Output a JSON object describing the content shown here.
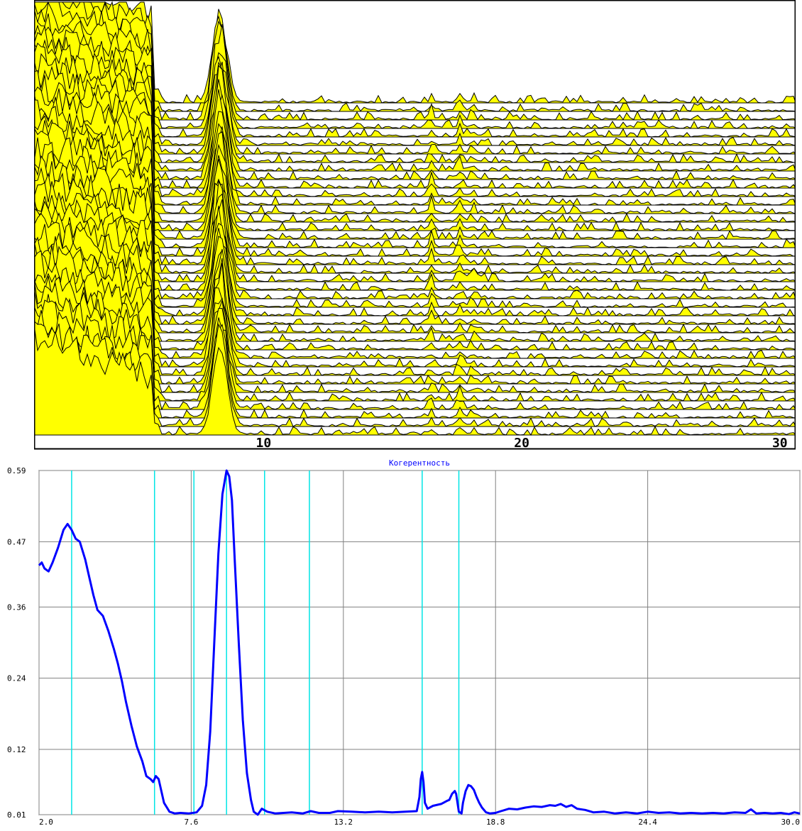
{
  "chart_data": [
    {
      "type": "area",
      "x_ticks": [
        "10",
        "20",
        "30"
      ],
      "x_tick_values": [
        10,
        20,
        30
      ],
      "xlim": [
        1.0,
        30.5
      ],
      "trace_count": 40,
      "peak_positions": [
        8.2,
        16.4,
        17.5,
        18.0,
        21.3
      ],
      "colors": {
        "fill": "#ffff00",
        "stroke": "#000000",
        "background": "#ffffff"
      }
    },
    {
      "type": "line",
      "title": "Когерентность",
      "y_ticks": [
        "0.59",
        "0.47",
        "0.36",
        "0.24",
        "0.12",
        "0.01"
      ],
      "y_tick_values": [
        0.59,
        0.47,
        0.36,
        0.24,
        0.12,
        0.01
      ],
      "x_ticks": [
        "2.0",
        "7.6",
        "13.2",
        "18.8",
        "24.4",
        "30.0"
      ],
      "x_tick_values": [
        2.0,
        7.6,
        13.2,
        18.8,
        24.4,
        30.0
      ],
      "xlim": [
        2.0,
        30.0
      ],
      "ylim": [
        0.01,
        0.59
      ],
      "grid": true,
      "marker_lines": [
        3.2,
        6.25,
        7.7,
        8.9,
        10.3,
        11.95,
        16.1,
        17.45
      ],
      "series": [
        {
          "x": [
            2.0,
            2.1,
            2.2,
            2.35,
            2.5,
            2.7,
            2.9,
            3.05,
            3.2,
            3.35,
            3.5,
            3.7,
            3.85,
            4.0,
            4.15,
            4.35,
            4.55,
            4.75,
            4.9,
            5.05,
            5.2,
            5.4,
            5.6,
            5.8,
            5.95,
            6.1,
            6.2,
            6.3,
            6.4,
            6.5,
            6.6,
            6.8,
            7.0,
            7.2,
            7.5,
            7.8,
            8.0,
            8.15,
            8.3,
            8.45,
            8.6,
            8.75,
            8.9,
            9.0,
            9.1,
            9.2,
            9.35,
            9.5,
            9.65,
            9.8,
            9.9,
            10.05,
            10.2,
            10.4,
            10.7,
            11.0,
            11.3,
            11.7,
            12.0,
            12.3,
            12.7,
            13.0,
            13.5,
            14.0,
            14.5,
            15.0,
            15.5,
            15.9,
            16.0,
            16.05,
            16.1,
            16.15,
            16.2,
            16.3,
            16.5,
            16.8,
            17.0,
            17.1,
            17.2,
            17.3,
            17.35,
            17.4,
            17.45,
            17.55,
            17.6,
            17.7,
            17.8,
            17.9,
            18.0,
            18.1,
            18.2,
            18.3,
            18.45,
            18.6,
            18.8,
            19.0,
            19.3,
            19.6,
            19.9,
            20.2,
            20.5,
            20.8,
            21.0,
            21.2,
            21.4,
            21.6,
            21.8,
            22.1,
            22.4,
            22.8,
            23.2,
            23.6,
            24.0,
            24.4,
            24.8,
            25.2,
            25.6,
            26.0,
            26.4,
            26.8,
            27.2,
            27.6,
            28.0,
            28.2,
            28.4,
            28.7,
            29.0,
            29.3,
            29.6,
            29.8,
            30.0
          ],
          "y": [
            0.43,
            0.435,
            0.425,
            0.42,
            0.435,
            0.46,
            0.49,
            0.5,
            0.49,
            0.475,
            0.47,
            0.44,
            0.41,
            0.38,
            0.355,
            0.345,
            0.32,
            0.29,
            0.265,
            0.235,
            0.2,
            0.16,
            0.125,
            0.1,
            0.075,
            0.07,
            0.065,
            0.075,
            0.07,
            0.05,
            0.03,
            0.015,
            0.012,
            0.013,
            0.012,
            0.014,
            0.025,
            0.06,
            0.15,
            0.3,
            0.45,
            0.55,
            0.59,
            0.58,
            0.54,
            0.44,
            0.3,
            0.17,
            0.08,
            0.035,
            0.015,
            0.01,
            0.02,
            0.015,
            0.012,
            0.013,
            0.014,
            0.012,
            0.016,
            0.013,
            0.013,
            0.016,
            0.015,
            0.014,
            0.015,
            0.014,
            0.015,
            0.016,
            0.04,
            0.07,
            0.082,
            0.065,
            0.03,
            0.02,
            0.025,
            0.028,
            0.033,
            0.035,
            0.045,
            0.05,
            0.045,
            0.03,
            0.015,
            0.012,
            0.03,
            0.05,
            0.06,
            0.058,
            0.052,
            0.04,
            0.03,
            0.022,
            0.014,
            0.012,
            0.013,
            0.016,
            0.02,
            0.019,
            0.022,
            0.024,
            0.023,
            0.026,
            0.025,
            0.028,
            0.023,
            0.026,
            0.02,
            0.018,
            0.014,
            0.015,
            0.012,
            0.014,
            0.012,
            0.015,
            0.013,
            0.014,
            0.012,
            0.013,
            0.012,
            0.013,
            0.012,
            0.014,
            0.013,
            0.019,
            0.012,
            0.013,
            0.012,
            0.013,
            0.011,
            0.014,
            0.012
          ]
        }
      ],
      "colors": {
        "line": "#0000ff",
        "markers": "#00e5e5",
        "grid": "#808080",
        "axis_labels": "#000000",
        "title": "#0000ff"
      }
    }
  ]
}
